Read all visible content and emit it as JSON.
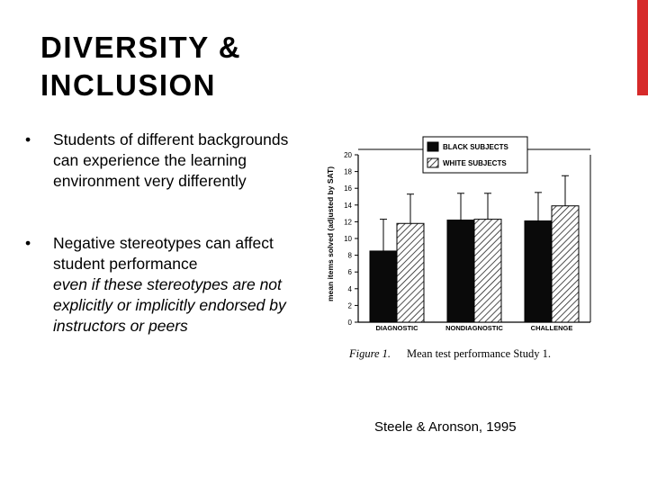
{
  "slide": {
    "title_line1": "DIVERSITY &",
    "title_line2": "INCLUSION",
    "bullet1": "Students of different backgrounds can experience the learning environment very differently",
    "bullet2_lead": "Negative stereotypes can affect student performance",
    "bullet2_italic": "even if these stereotypes are not explicitly or implicitly endorsed by instructors or peers",
    "citation": "Steele & Aronson, 1995",
    "accent_color": "#d62a2a"
  },
  "chart_data": {
    "type": "bar",
    "categories": [
      "DIAGNOSTIC",
      "NONDIAGNOSTIC",
      "CHALLENGE"
    ],
    "series": [
      {
        "name": "BLACK SUBJECTS",
        "values": [
          8.5,
          12.2,
          12.1
        ],
        "errors": [
          3.8,
          3.2,
          3.4
        ],
        "fill": "solid"
      },
      {
        "name": "WHITE SUBJECTS",
        "values": [
          11.8,
          12.3,
          13.9
        ],
        "errors": [
          3.5,
          3.1,
          3.6
        ],
        "fill": "hatched"
      }
    ],
    "ylabel": "mean items solved (adjusted by SAT)",
    "ylim": [
      0,
      20
    ],
    "yticks": [
      "0",
      "2",
      "4",
      "6",
      "8",
      "10",
      "12",
      "14",
      "16",
      "18",
      "20"
    ],
    "caption_label": "Figure 1.",
    "caption_text": "Mean test performance Study 1."
  }
}
